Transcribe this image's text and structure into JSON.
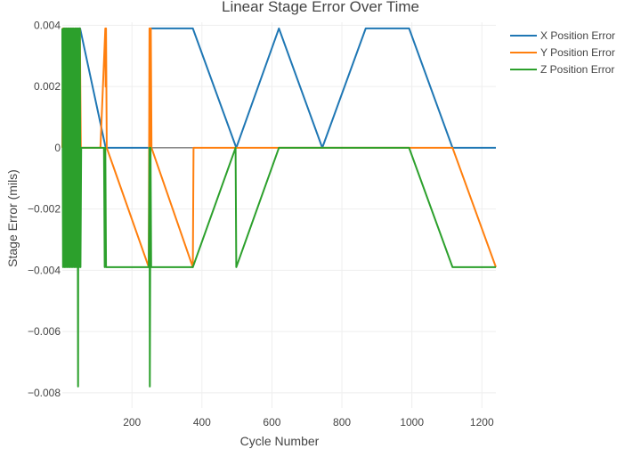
{
  "chart_data": {
    "type": "line",
    "title": "Linear Stage Error Over Time",
    "xlabel": "Cycle Number",
    "ylabel": "Stage Error (mils)",
    "xlim": [
      1,
      1240
    ],
    "ylim": [
      -0.0085,
      0.0041
    ],
    "xticks": [
      200,
      400,
      600,
      800,
      1000,
      1200
    ],
    "xtick_labels": [
      "200",
      "400",
      "600",
      "800",
      "1000",
      "1200"
    ],
    "yticks": [
      0.004,
      0.002,
      0,
      -0.002,
      -0.004,
      -0.006,
      -0.008
    ],
    "ytick_labels": [
      "0.004",
      "0.002",
      "0",
      "−0.002",
      "−0.004",
      "−0.006",
      "−0.008"
    ],
    "grid": true,
    "legend_position": "top-right",
    "series": [
      {
        "name": "X Position Error",
        "color": "#1f77b4",
        "points": [
          [
            1,
            0.0039
          ],
          [
            4,
            0
          ],
          [
            7,
            0.0039
          ],
          [
            10,
            0
          ],
          [
            13,
            0.0039
          ],
          [
            16,
            0
          ],
          [
            19,
            0.0039
          ],
          [
            22,
            0
          ],
          [
            25,
            0.0039
          ],
          [
            28,
            0
          ],
          [
            31,
            0.0039
          ],
          [
            34,
            0
          ],
          [
            37,
            0.0039
          ],
          [
            40,
            0
          ],
          [
            43,
            0.0039
          ],
          [
            46,
            0
          ],
          [
            49,
            0.0039
          ],
          [
            52,
            0.0039
          ],
          [
            125,
            0
          ],
          [
            127,
            0
          ],
          [
            250,
            0
          ],
          [
            252,
            0.0039
          ],
          [
            374,
            0.0039
          ],
          [
            498,
            0
          ],
          [
            620,
            0.0039
          ],
          [
            744,
            0
          ],
          [
            868,
            0.0039
          ],
          [
            992,
            0.0039
          ],
          [
            1116,
            0
          ],
          [
            1240,
            0
          ]
        ]
      },
      {
        "name": "Y Position Error",
        "color": "#ff7f0e",
        "points": [
          [
            1,
            0
          ],
          [
            3,
            0.0039
          ],
          [
            6,
            0
          ],
          [
            9,
            0.0039
          ],
          [
            12,
            0
          ],
          [
            15,
            0.0039
          ],
          [
            18,
            0
          ],
          [
            21,
            0.0039
          ],
          [
            24,
            0
          ],
          [
            27,
            0.0039
          ],
          [
            30,
            0
          ],
          [
            33,
            0.0039
          ],
          [
            36,
            0
          ],
          [
            39,
            0.0039
          ],
          [
            42,
            0
          ],
          [
            45,
            0.0039
          ],
          [
            48,
            0
          ],
          [
            51,
            0.0039
          ],
          [
            54,
            0
          ],
          [
            110,
            0
          ],
          [
            124,
            0.0039
          ],
          [
            125,
            0.002
          ],
          [
            126,
            0.0039
          ],
          [
            128,
            0
          ],
          [
            248,
            -0.0039
          ],
          [
            250,
            0.0039
          ],
          [
            252,
            0
          ],
          [
            254,
            0.0039
          ],
          [
            256,
            0
          ],
          [
            374,
            -0.0039
          ],
          [
            376,
            0
          ],
          [
            498,
            0
          ],
          [
            620,
            0
          ],
          [
            744,
            0
          ],
          [
            868,
            0
          ],
          [
            992,
            0
          ],
          [
            1116,
            0
          ],
          [
            1240,
            -0.0039
          ]
        ]
      },
      {
        "name": "Z Position Error",
        "color": "#2ca02c",
        "points": [
          [
            1,
            0.0039
          ],
          [
            3,
            -0.0039
          ],
          [
            5,
            0.0039
          ],
          [
            7,
            -0.0039
          ],
          [
            9,
            0.0039
          ],
          [
            11,
            -0.0039
          ],
          [
            13,
            0.0039
          ],
          [
            15,
            -0.0039
          ],
          [
            17,
            0.0039
          ],
          [
            19,
            -0.0039
          ],
          [
            21,
            0.0039
          ],
          [
            23,
            -0.0039
          ],
          [
            25,
            0.0039
          ],
          [
            27,
            -0.0039
          ],
          [
            29,
            0.0039
          ],
          [
            31,
            -0.0039
          ],
          [
            33,
            0.0039
          ],
          [
            35,
            -0.0039
          ],
          [
            37,
            0.0039
          ],
          [
            39,
            -0.0039
          ],
          [
            41,
            0.0039
          ],
          [
            43,
            -0.0039
          ],
          [
            44,
            0.0039
          ],
          [
            46,
            -0.0078
          ],
          [
            47,
            0.0039
          ],
          [
            49,
            -0.0039
          ],
          [
            51,
            0.0039
          ],
          [
            53,
            -0.0039
          ],
          [
            55,
            0
          ],
          [
            120,
            0
          ],
          [
            122,
            -0.0039
          ],
          [
            124,
            0
          ],
          [
            126,
            -0.0039
          ],
          [
            248,
            -0.0039
          ],
          [
            250,
            0
          ],
          [
            251,
            -0.0078
          ],
          [
            253,
            0
          ],
          [
            255,
            -0.0039
          ],
          [
            374,
            -0.0039
          ],
          [
            496,
            0
          ],
          [
            498,
            -0.0039
          ],
          [
            620,
            0
          ],
          [
            744,
            0
          ],
          [
            868,
            0
          ],
          [
            992,
            0
          ],
          [
            1116,
            -0.0039
          ],
          [
            1240,
            -0.0039
          ]
        ]
      }
    ]
  }
}
